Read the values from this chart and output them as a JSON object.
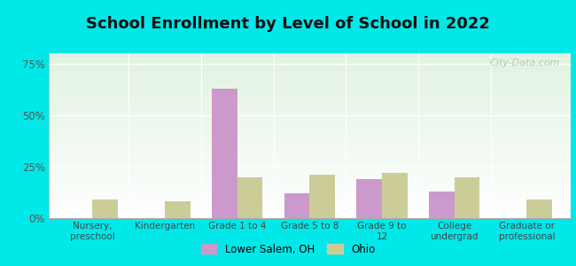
{
  "title": "School Enrollment by Level of School in 2022",
  "categories": [
    "Nursery,\npreschool",
    "Kindergarten",
    "Grade 1 to 4",
    "Grade 5 to 8",
    "Grade 9 to\n12",
    "College\nundergrad",
    "Graduate or\nprofessional"
  ],
  "lower_salem": [
    0,
    0,
    63,
    12,
    19,
    13,
    0
  ],
  "ohio": [
    9,
    8,
    20,
    21,
    22,
    20,
    9
  ],
  "lower_salem_color": "#cc99cc",
  "ohio_color": "#cccc99",
  "background_outer": "#00e8e8",
  "ylim": [
    0,
    80
  ],
  "yticks": [
    0,
    25,
    50,
    75
  ],
  "ytick_labels": [
    "0%",
    "25%",
    "50%",
    "75%"
  ],
  "legend_labels": [
    "Lower Salem, OH",
    "Ohio"
  ],
  "bar_width": 0.35,
  "title_fontsize": 13,
  "watermark": "City-Data.com"
}
